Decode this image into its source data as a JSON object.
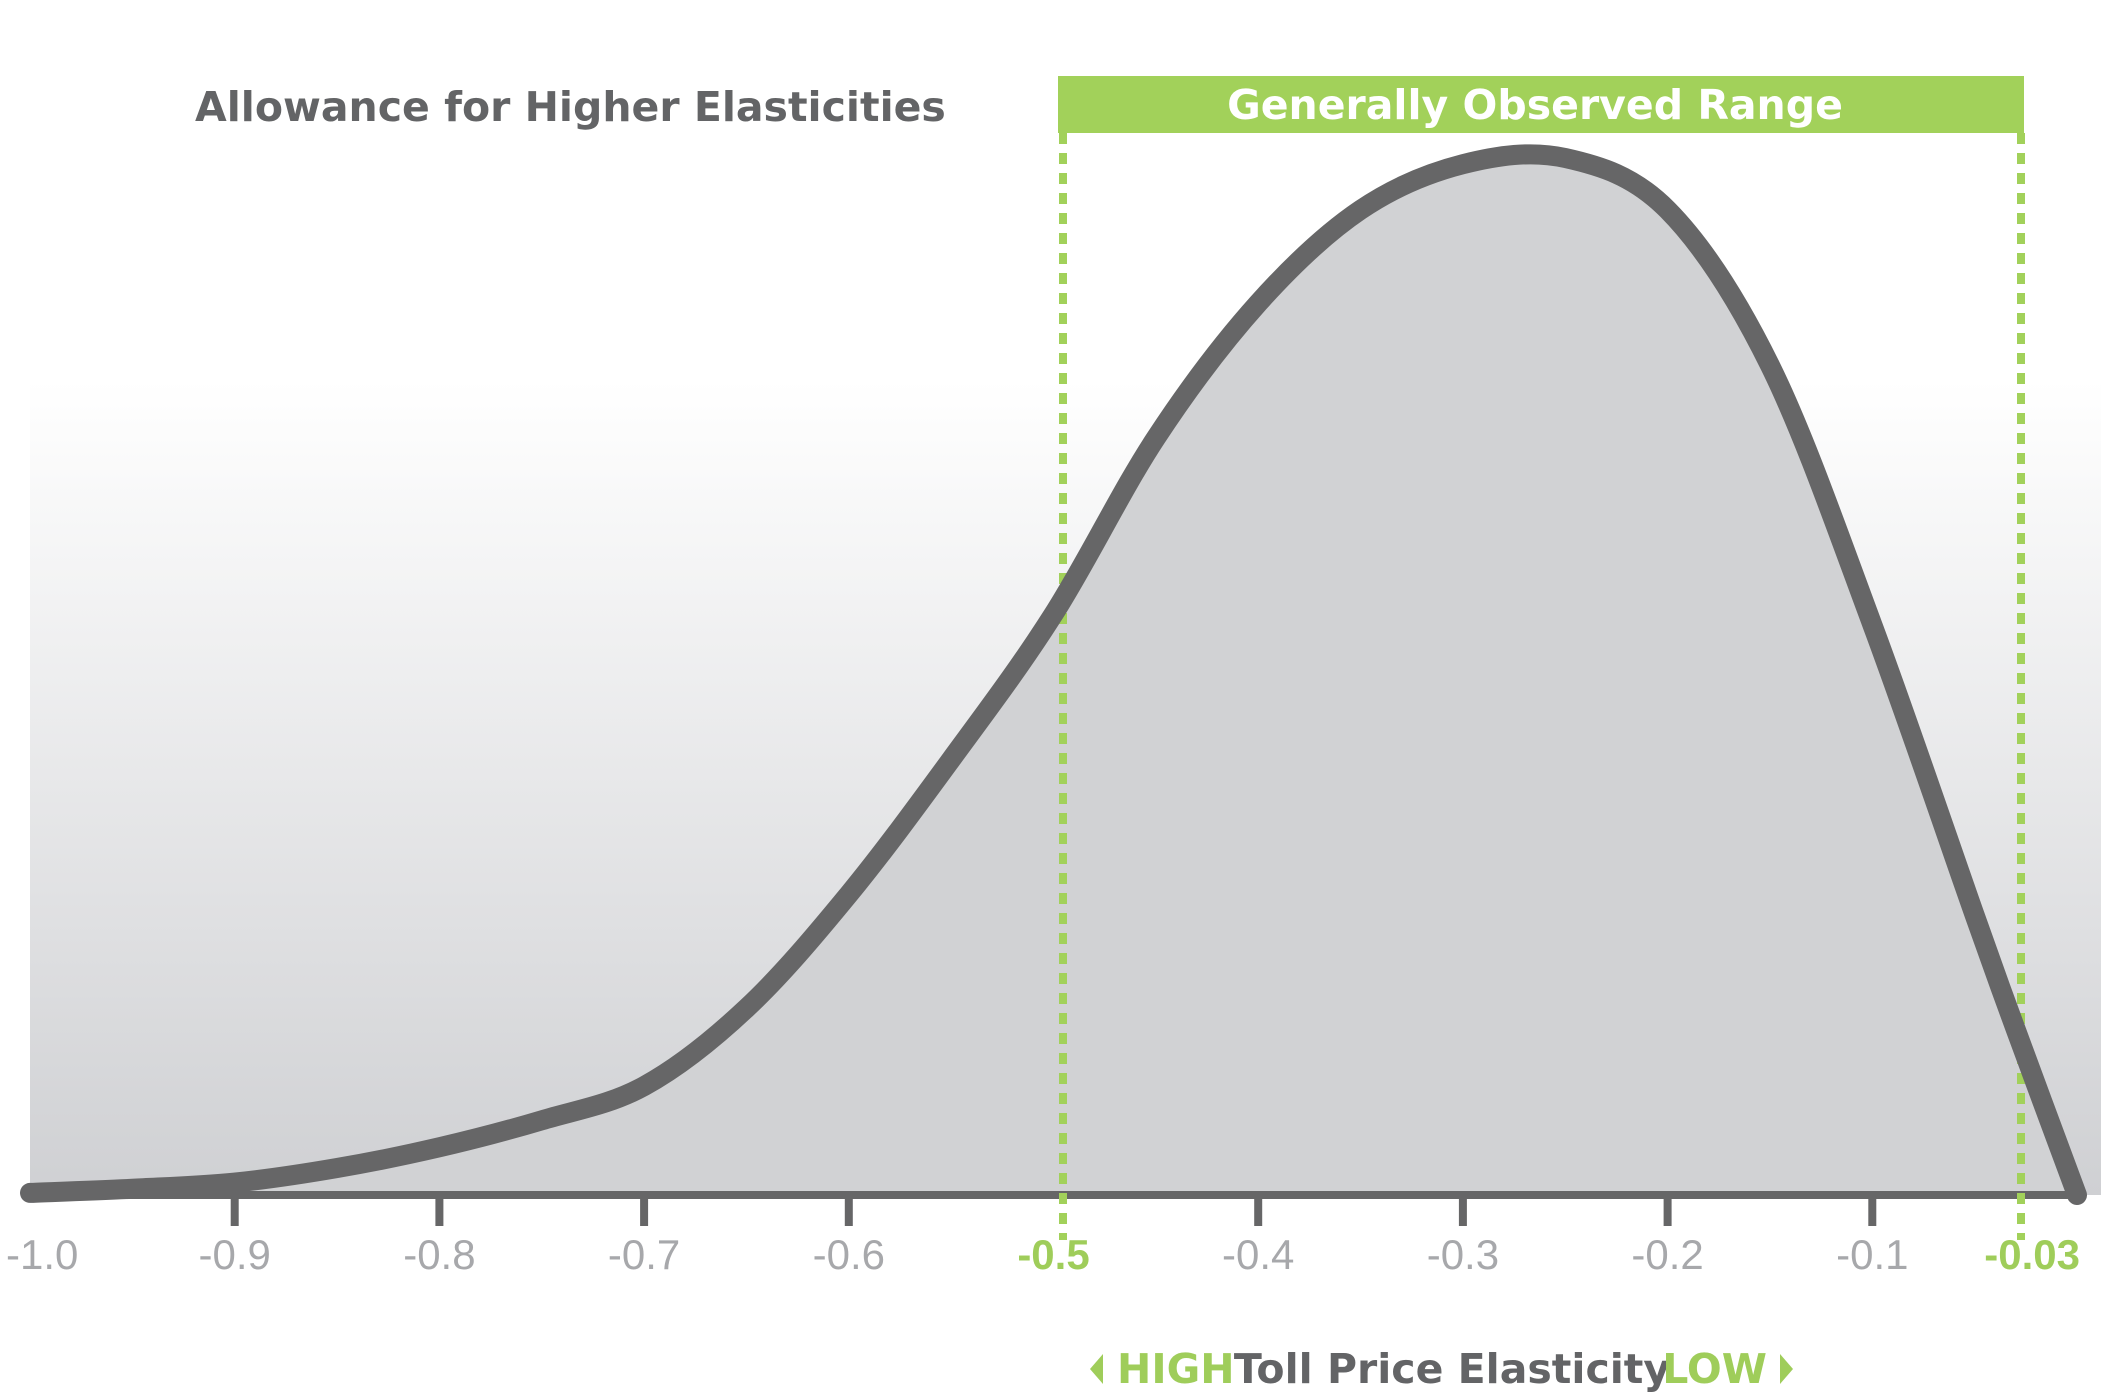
{
  "chart_data": {
    "type": "area",
    "title": "Allowance for Higher Elasticities",
    "xlabel": "Toll Price Elasticity",
    "xlim": [
      -1.0,
      -0.03
    ],
    "x_ticks": [
      -1.0,
      -0.9,
      -0.8,
      -0.7,
      -0.6,
      -0.5,
      -0.4,
      -0.3,
      -0.2,
      -0.1,
      -0.03
    ],
    "x_tick_labels": [
      "-1.0",
      "-0.9",
      "-0.8",
      "-0.7",
      "-0.6",
      "-0.5",
      "-0.4",
      "-0.3",
      "-0.2",
      "-0.1",
      "-0.03"
    ],
    "highlighted_ticks": [
      "-0.5",
      "-0.03"
    ],
    "direction_labels": {
      "left": "HIGH",
      "right": "LOW"
    },
    "observed_range": {
      "label": "Generally Observed Range",
      "from": -0.5,
      "to": -0.03
    },
    "curve": {
      "x": [
        -1.0,
        -0.95,
        -0.9,
        -0.85,
        -0.8,
        -0.75,
        -0.7,
        -0.65,
        -0.6,
        -0.55,
        -0.5,
        -0.45,
        -0.4,
        -0.35,
        -0.3,
        -0.25,
        -0.2,
        -0.15,
        -0.1,
        -0.05,
        -0.03,
        0.0
      ],
      "y": [
        0.002,
        0.006,
        0.012,
        0.026,
        0.046,
        0.072,
        0.105,
        0.18,
        0.29,
        0.42,
        0.56,
        0.73,
        0.86,
        0.95,
        0.994,
        1.0,
        0.95,
        0.8,
        0.55,
        0.27,
        0.16,
        0.0
      ]
    },
    "grid": false,
    "legend": "none",
    "colors": {
      "curve": "#666667",
      "fill": "#d1d2d4",
      "accent": "#a2d15a",
      "text": "#636466",
      "tick_text": "#a7a8ab"
    }
  }
}
